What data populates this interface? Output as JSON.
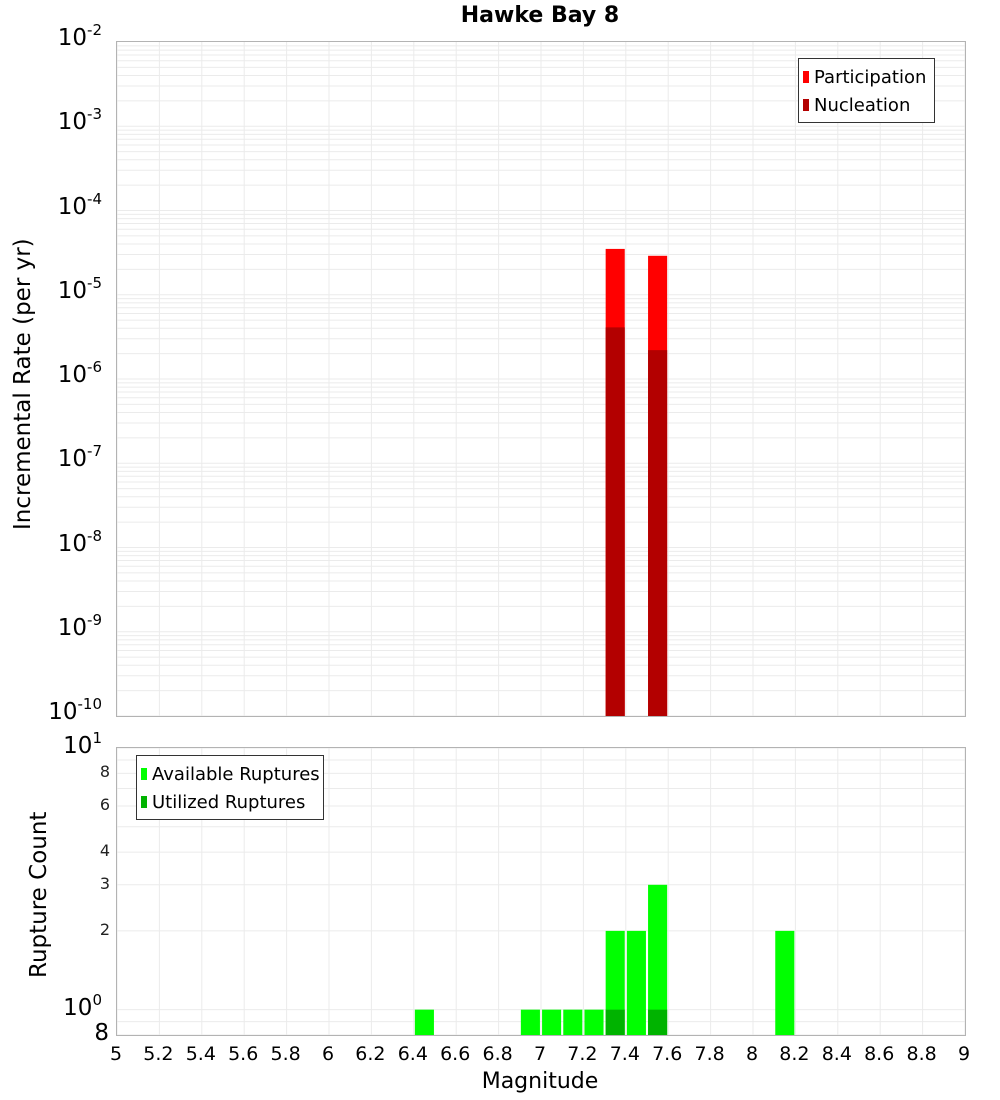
{
  "title": "Hawke Bay 8",
  "colors": {
    "participation": "#ff0000",
    "nucleation": "#b30000",
    "available": "#00ff00",
    "utilized": "#00b300",
    "grid": "#ebebeb",
    "border": "#b3b3b3"
  },
  "top_chart": {
    "ylabel": "Incremental Rate (per yr)",
    "yticks": [
      {
        "base": "10",
        "exp": "-2"
      },
      {
        "base": "10",
        "exp": "-3"
      },
      {
        "base": "10",
        "exp": "-4"
      },
      {
        "base": "10",
        "exp": "-5"
      },
      {
        "base": "10",
        "exp": "-6"
      },
      {
        "base": "10",
        "exp": "-7"
      },
      {
        "base": "10",
        "exp": "-8"
      },
      {
        "base": "10",
        "exp": "-9"
      },
      {
        "base": "10",
        "exp": "-10"
      }
    ],
    "legend": [
      {
        "label": "Participation",
        "color": "#ff0000"
      },
      {
        "label": "Nucleation",
        "color": "#b30000"
      }
    ]
  },
  "bottom_chart": {
    "ylabel": "Rupture Count",
    "yticks_major": [
      {
        "base": "10",
        "exp": "1"
      },
      {
        "base": "10",
        "exp": "0"
      }
    ],
    "yticks_minor": [
      "8",
      "6",
      "4",
      "3",
      "2"
    ],
    "ytick_bottom": "8",
    "legend": [
      {
        "label": "Available Ruptures",
        "color": "#00ff00"
      },
      {
        "label": "Utilized Ruptures",
        "color": "#00b300"
      }
    ]
  },
  "xlabel": "Magnitude",
  "xticks": [
    "5",
    "5.2",
    "5.4",
    "5.6",
    "5.8",
    "6",
    "6.2",
    "6.4",
    "6.6",
    "6.8",
    "7",
    "7.2",
    "7.4",
    "7.6",
    "7.8",
    "8",
    "8.2",
    "8.4",
    "8.6",
    "8.8",
    "9"
  ],
  "chart_data": [
    {
      "type": "bar",
      "title": "Hawke Bay 8",
      "xlabel": "Magnitude",
      "ylabel": "Incremental Rate (per yr)",
      "yscale": "log",
      "xlim": [
        5,
        9
      ],
      "ylim": [
        1e-10,
        0.01
      ],
      "grid": true,
      "legend_position": "top-right",
      "x": [
        7.35,
        7.55
      ],
      "series": [
        {
          "name": "Participation",
          "color": "#ff0000",
          "values": [
            3.5e-05,
            2.9e-05
          ]
        },
        {
          "name": "Nucleation",
          "color": "#b30000",
          "values": [
            4.1e-06,
            2.2e-06
          ]
        }
      ]
    },
    {
      "type": "bar",
      "xlabel": "Magnitude",
      "ylabel": "Rupture Count",
      "yscale": "log",
      "xlim": [
        5,
        9
      ],
      "ylim": [
        0.8,
        10
      ],
      "grid": true,
      "legend_position": "top-left",
      "x": [
        6.45,
        6.95,
        7.05,
        7.15,
        7.25,
        7.35,
        7.45,
        7.55,
        8.15
      ],
      "series": [
        {
          "name": "Available Ruptures",
          "color": "#00ff00",
          "values": [
            1,
            1,
            1,
            1,
            1,
            2,
            2,
            3,
            2
          ]
        },
        {
          "name": "Utilized Ruptures",
          "color": "#00b300",
          "values": [
            0,
            0,
            0,
            0,
            0,
            1,
            0,
            1,
            0
          ]
        }
      ]
    }
  ]
}
